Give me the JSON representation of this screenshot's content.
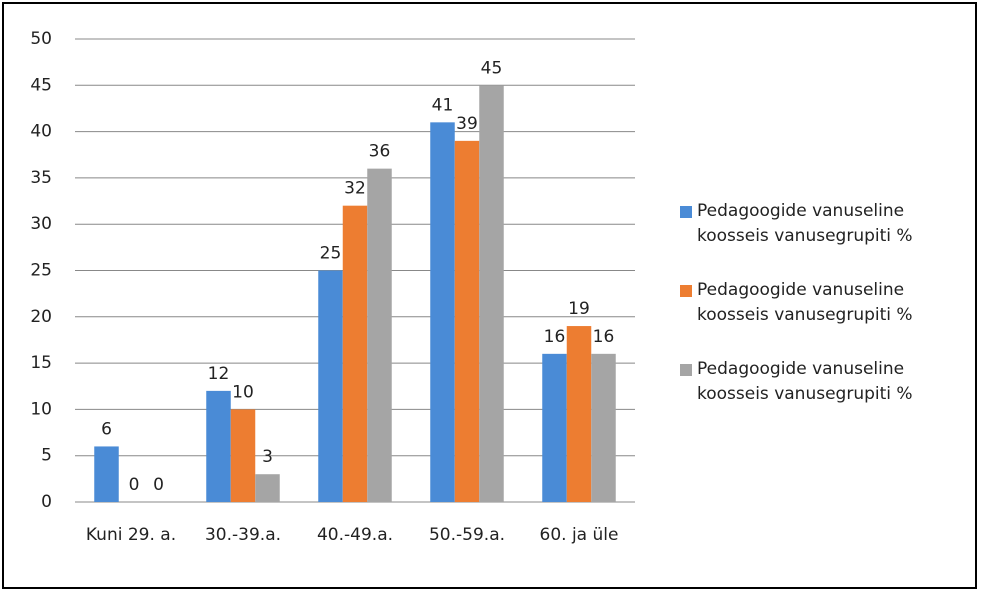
{
  "chart_data": {
    "type": "bar",
    "categories": [
      "Kuni 29. a.",
      "30.-39.a.",
      "40.-49.a.",
      "50.-59.a.",
      "60. ja üle"
    ],
    "series": [
      {
        "name": "Pedagoogide vanuseline koosseis vanusegrupiti %",
        "color": "#4a8bd6",
        "values": [
          6,
          12,
          25,
          41,
          16
        ]
      },
      {
        "name": "Pedagoogide vanuseline koosseis vanusegrupiti %",
        "color": "#ed7d31",
        "values": [
          0,
          10,
          32,
          39,
          19
        ]
      },
      {
        "name": "Pedagoogide vanuseline koosseis vanusegrupiti %",
        "color": "#a5a5a5",
        "values": [
          0,
          3,
          36,
          45,
          16
        ]
      }
    ],
    "ylim": [
      0,
      50
    ],
    "yticks": [
      0,
      5,
      10,
      15,
      20,
      25,
      30,
      35,
      40,
      45,
      50
    ],
    "grid": true,
    "legend": "right"
  }
}
